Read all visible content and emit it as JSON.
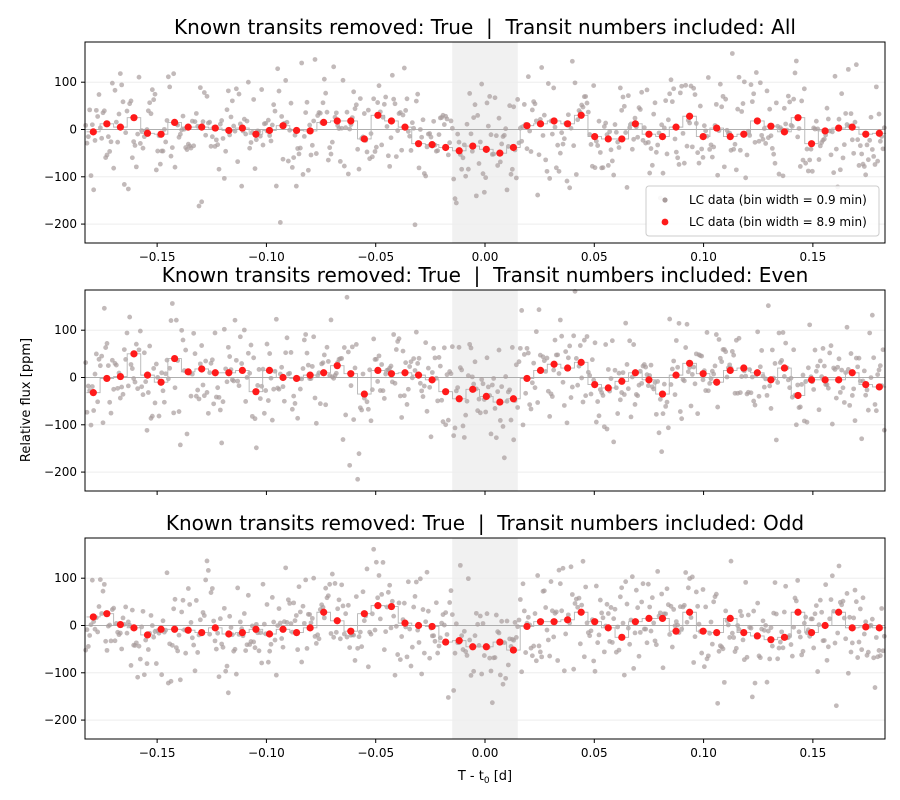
{
  "figure": {
    "ylabel": "Relative flux [ppm]",
    "xlabel": "T - t",
    "xlabel_sub": "0",
    "xlabel_unit": " [d]"
  },
  "legend": {
    "items": [
      {
        "label": "LC data (bin width = 0.9 min)",
        "color": "#a89c9c"
      },
      {
        "label": "LC data (bin width = 8.9 min)",
        "color": "#ff1a1a"
      }
    ],
    "location": "lower right"
  },
  "colors": {
    "raw_points": "#a89c9c",
    "binned_points": "#ff1a1a",
    "transit_band": "#e6e6e6",
    "zero_line": "#999999",
    "step_line": "#b4b4b4"
  },
  "chart_data": [
    {
      "type": "scatter",
      "title": "Known transits removed: True  |  Transit numbers included: All",
      "xlim": [
        -0.183,
        0.183
      ],
      "ylim": [
        -240,
        185
      ],
      "x_ticks": [
        -0.15,
        -0.1,
        -0.05,
        0.0,
        0.05,
        0.1,
        0.15
      ],
      "x_tick_labels": [
        "−0.15",
        "−0.10",
        "−0.05",
        "0.00",
        "0.05",
        "0.10",
        "0.15"
      ],
      "y_ticks": [
        -200,
        -100,
        0,
        100
      ],
      "y_tick_labels": [
        "−200",
        "−100",
        "0",
        "100"
      ],
      "transit_window": [
        -0.015,
        0.015
      ],
      "legend_visible": true,
      "series": [
        {
          "name": "LC data (bin width = 8.9 min)",
          "x": [
            -0.1792,
            -0.173,
            -0.1668,
            -0.1606,
            -0.1544,
            -0.1482,
            -0.142,
            -0.1358,
            -0.1296,
            -0.1234,
            -0.1172,
            -0.111,
            -0.1048,
            -0.0986,
            -0.0924,
            -0.0862,
            -0.08,
            -0.0738,
            -0.0676,
            -0.0614,
            -0.0552,
            -0.049,
            -0.0428,
            -0.0366,
            -0.0304,
            -0.0242,
            -0.018,
            -0.0118,
            -0.0056,
            0.0006,
            0.0068,
            0.013,
            0.0192,
            0.0254,
            0.0316,
            0.0378,
            0.044,
            0.0502,
            0.0564,
            0.0626,
            0.0688,
            0.075,
            0.0812,
            0.0874,
            0.0936,
            0.0998,
            0.106,
            0.1122,
            0.1184,
            0.1246,
            0.1308,
            0.137,
            0.1432,
            0.1494,
            0.1556,
            0.1618,
            0.168,
            0.1742,
            0.1804
          ],
          "values": [
            -5,
            12,
            5,
            25,
            -8,
            -10,
            15,
            5,
            5,
            3,
            -2,
            3,
            -10,
            -2,
            8,
            -2,
            -3,
            15,
            18,
            18,
            -20,
            30,
            18,
            5,
            -30,
            -32,
            -38,
            -45,
            -35,
            -42,
            -50,
            -38,
            8,
            12,
            18,
            12,
            30,
            -15,
            -20,
            -20,
            12,
            -10,
            -15,
            5,
            28,
            -15,
            3,
            -15,
            -10,
            18,
            7,
            -5,
            25,
            -30,
            -3,
            3,
            5,
            -10,
            -8
          ]
        }
      ]
    },
    {
      "type": "scatter",
      "title": "Known transits removed: True  |  Transit numbers included: Even",
      "xlim": [
        -0.183,
        0.183
      ],
      "ylim": [
        -240,
        185
      ],
      "x_ticks": [
        -0.15,
        -0.1,
        -0.05,
        0.0,
        0.05,
        0.1,
        0.15
      ],
      "y_ticks": [
        -200,
        -100,
        0,
        100
      ],
      "y_tick_labels": [
        "−200",
        "−100",
        "0",
        "100"
      ],
      "transit_window": [
        -0.015,
        0.015
      ],
      "legend_visible": false,
      "series": [
        {
          "name": "LC data (bin width = 8.9 min)",
          "x": [
            -0.1792,
            -0.173,
            -0.1668,
            -0.1606,
            -0.1544,
            -0.1482,
            -0.142,
            -0.1358,
            -0.1296,
            -0.1234,
            -0.1172,
            -0.111,
            -0.1048,
            -0.0986,
            -0.0924,
            -0.0862,
            -0.08,
            -0.0738,
            -0.0676,
            -0.0614,
            -0.0552,
            -0.049,
            -0.0428,
            -0.0366,
            -0.0304,
            -0.0242,
            -0.018,
            -0.0118,
            -0.0056,
            0.0006,
            0.0068,
            0.013,
            0.0192,
            0.0254,
            0.0316,
            0.0378,
            0.044,
            0.0502,
            0.0564,
            0.0626,
            0.0688,
            0.075,
            0.0812,
            0.0874,
            0.0936,
            0.0998,
            0.106,
            0.1122,
            0.1184,
            0.1246,
            0.1308,
            0.137,
            0.1432,
            0.1494,
            0.1556,
            0.1618,
            0.168,
            0.1742,
            0.1804
          ],
          "values": [
            -32,
            -2,
            2,
            50,
            5,
            -10,
            40,
            12,
            18,
            10,
            10,
            15,
            -30,
            15,
            0,
            -2,
            5,
            10,
            25,
            8,
            -35,
            15,
            8,
            10,
            5,
            -5,
            -30,
            -45,
            -25,
            -40,
            -52,
            -45,
            -2,
            15,
            28,
            20,
            32,
            -15,
            -22,
            -8,
            10,
            -5,
            -35,
            5,
            30,
            8,
            -10,
            15,
            20,
            10,
            -5,
            20,
            -38,
            -5,
            -5,
            -5,
            10,
            -15,
            -20
          ]
        }
      ]
    },
    {
      "type": "scatter",
      "title": "Known transits removed: True  |  Transit numbers included: Odd",
      "xlim": [
        -0.183,
        0.183
      ],
      "ylim": [
        -240,
        185
      ],
      "x_ticks": [
        -0.15,
        -0.1,
        -0.05,
        0.0,
        0.05,
        0.1,
        0.15
      ],
      "x_tick_labels": [
        "−0.15",
        "−0.10",
        "−0.05",
        "0.00",
        "0.05",
        "0.10",
        "0.15"
      ],
      "y_ticks": [
        -200,
        -100,
        0,
        100
      ],
      "y_tick_labels": [
        "−200",
        "−100",
        "0",
        "100"
      ],
      "transit_window": [
        -0.015,
        0.015
      ],
      "legend_visible": false,
      "series": [
        {
          "name": "LC data (bin width = 8.9 min)",
          "x": [
            -0.1792,
            -0.173,
            -0.1668,
            -0.1606,
            -0.1544,
            -0.1482,
            -0.142,
            -0.1358,
            -0.1296,
            -0.1234,
            -0.1172,
            -0.111,
            -0.1048,
            -0.0986,
            -0.0924,
            -0.0862,
            -0.08,
            -0.0738,
            -0.0676,
            -0.0614,
            -0.0552,
            -0.049,
            -0.0428,
            -0.0366,
            -0.0304,
            -0.0242,
            -0.018,
            -0.0118,
            -0.0056,
            0.0006,
            0.0068,
            0.013,
            0.0192,
            0.0254,
            0.0316,
            0.0378,
            0.044,
            0.0502,
            0.0564,
            0.0626,
            0.0688,
            0.075,
            0.0812,
            0.0874,
            0.0936,
            0.0998,
            0.106,
            0.1122,
            0.1184,
            0.1246,
            0.1308,
            0.137,
            0.1432,
            0.1494,
            0.1556,
            0.1618,
            0.168,
            0.1742,
            0.1804
          ],
          "values": [
            18,
            25,
            2,
            -5,
            -20,
            -8,
            -8,
            -10,
            -15,
            -5,
            -18,
            -15,
            -8,
            -18,
            -8,
            -15,
            -5,
            28,
            10,
            -12,
            25,
            42,
            40,
            5,
            0,
            -2,
            -35,
            -32,
            -45,
            -45,
            -35,
            -52,
            -2,
            8,
            8,
            12,
            28,
            8,
            -5,
            -25,
            8,
            15,
            15,
            -12,
            28,
            -12,
            -15,
            15,
            -15,
            -22,
            -30,
            -25,
            28,
            -15,
            0,
            28,
            -5,
            -3,
            -5
          ]
        }
      ]
    }
  ]
}
